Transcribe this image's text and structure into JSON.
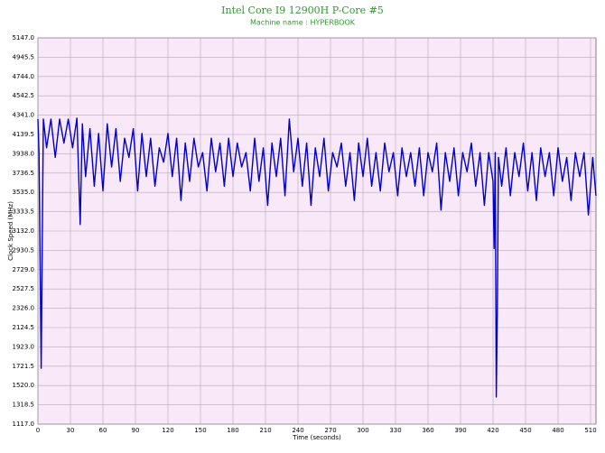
{
  "chart_data": {
    "type": "line",
    "title": "Intel Core I9 12900H P-Core #5",
    "subtitle": "Machine name : HYPERBOOK",
    "xlabel": "Time (seconds)",
    "ylabel": "Clock Speed (MHz)",
    "color": "#0000cc",
    "grid": true,
    "xlim": [
      0,
      515
    ],
    "ylim": [
      1117,
      5147
    ],
    "xticks": [
      0,
      30,
      60,
      90,
      120,
      150,
      180,
      210,
      240,
      270,
      300,
      330,
      360,
      390,
      420,
      450,
      480,
      510
    ],
    "yticks": [
      {
        "value": 1117,
        "label": "1117.0"
      },
      {
        "value": 1318.5,
        "label": "1318.5"
      },
      {
        "value": 1520,
        "label": "1520.0"
      },
      {
        "value": 1721.5,
        "label": "1721.5"
      },
      {
        "value": 1923,
        "label": "1923.0"
      },
      {
        "value": 2124.5,
        "label": "2124.5"
      },
      {
        "value": 2326,
        "label": "2326.0"
      },
      {
        "value": 2527.5,
        "label": "2527.5"
      },
      {
        "value": 2729,
        "label": "2729.0"
      },
      {
        "value": 2930.5,
        "label": "2930.5"
      },
      {
        "value": 3132,
        "label": "3132.0"
      },
      {
        "value": 3333.5,
        "label": "3333.5"
      },
      {
        "value": 3535,
        "label": "3535.0"
      },
      {
        "value": 3736.5,
        "label": "3736.5"
      },
      {
        "value": 3938,
        "label": "3938.0"
      },
      {
        "value": 4139.5,
        "label": "4139.5"
      },
      {
        "value": 4341,
        "label": "4341.0"
      },
      {
        "value": 4542.5,
        "label": "4542.5"
      },
      {
        "value": 4744,
        "label": "4744.0"
      },
      {
        "value": 4945.5,
        "label": "4945.5"
      },
      {
        "value": 5147,
        "label": "5147.0"
      }
    ],
    "x": [
      0,
      1,
      3,
      5,
      8,
      12,
      16,
      20,
      24,
      28,
      32,
      36,
      39,
      41,
      44,
      48,
      52,
      56,
      60,
      64,
      68,
      72,
      76,
      80,
      84,
      88,
      92,
      96,
      100,
      104,
      108,
      112,
      116,
      120,
      124,
      128,
      132,
      136,
      140,
      144,
      148,
      152,
      156,
      160,
      164,
      168,
      172,
      176,
      180,
      184,
      188,
      192,
      196,
      200,
      204,
      208,
      212,
      216,
      220,
      224,
      228,
      232,
      236,
      240,
      244,
      248,
      252,
      256,
      260,
      264,
      268,
      272,
      276,
      280,
      284,
      288,
      292,
      296,
      300,
      304,
      308,
      312,
      316,
      320,
      324,
      328,
      332,
      336,
      340,
      344,
      348,
      352,
      356,
      360,
      364,
      368,
      372,
      376,
      380,
      384,
      388,
      392,
      396,
      400,
      404,
      408,
      412,
      416,
      420,
      421,
      422,
      423,
      424,
      425,
      428,
      432,
      436,
      440,
      444,
      448,
      452,
      456,
      460,
      464,
      468,
      472,
      476,
      480,
      484,
      488,
      492,
      496,
      500,
      504,
      508,
      512,
      515
    ],
    "values": [
      4300,
      3950,
      1700,
      4300,
      4000,
      4300,
      3900,
      4300,
      4050,
      4300,
      4000,
      4310,
      3200,
      4250,
      3700,
      4200,
      3600,
      4150,
      3550,
      4250,
      3800,
      4200,
      3650,
      4100,
      3900,
      4200,
      3550,
      4150,
      3700,
      4100,
      3600,
      4000,
      3850,
      4150,
      3700,
      4100,
      3450,
      4050,
      3650,
      4100,
      3800,
      3950,
      3550,
      4100,
      3750,
      4050,
      3600,
      4100,
      3700,
      4050,
      3800,
      3950,
      3550,
      4100,
      3650,
      4000,
      3400,
      4050,
      3700,
      4100,
      3500,
      4300,
      3750,
      4100,
      3600,
      4050,
      3400,
      4000,
      3700,
      4100,
      3550,
      3950,
      3800,
      4050,
      3600,
      3950,
      3450,
      4050,
      3700,
      4100,
      3600,
      3950,
      3550,
      4050,
      3750,
      3950,
      3500,
      4000,
      3700,
      3950,
      3600,
      4000,
      3500,
      3950,
      3750,
      4050,
      3350,
      3950,
      3650,
      4000,
      3500,
      3950,
      3750,
      4050,
      3600,
      3950,
      3400,
      3950,
      3650,
      2950,
      3950,
      1400,
      2330,
      3900,
      3600,
      4000,
      3500,
      3950,
      3700,
      4050,
      3550,
      3950,
      3450,
      4000,
      3700,
      3950,
      3500,
      4000,
      3650,
      3900,
      3450,
      3950,
      3700,
      3950,
      3300,
      3900,
      3500
    ]
  }
}
